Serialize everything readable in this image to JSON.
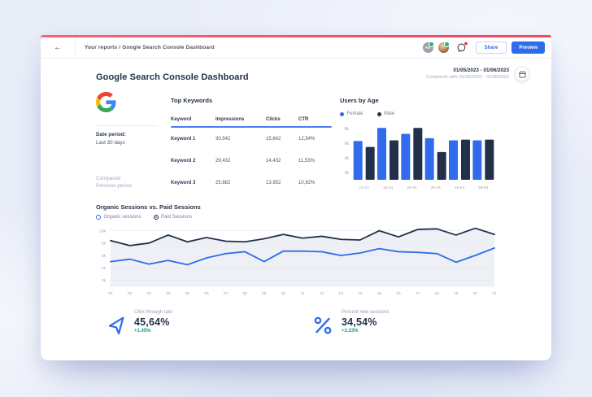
{
  "topbar": {
    "breadcrumb": "Your reports / Google Search Console Dashboard",
    "avatar_initials": "AK",
    "share_label": "Share",
    "preview_label": "Preview"
  },
  "header": {
    "title": "Google Search Console Dashboard",
    "date_range": "01/05/2023 - 01/06/2023",
    "compared_with": "Compared with: 01/05/2022 - 01/05/2022"
  },
  "side_panel": {
    "date_period_label": "Date period:",
    "date_period_value": "Last 30 days",
    "compared_label": "Compared:",
    "compared_value": "Previous period"
  },
  "keywords_table": {
    "title": "Top Keywords",
    "columns": [
      "Keyword",
      "Impressions",
      "Clicks",
      "CTR"
    ],
    "rows": [
      [
        "Keyword 1",
        "30,542",
        "15,642",
        "12,54%"
      ],
      [
        "Keyword 2",
        "29,432",
        "14,432",
        "11,53%"
      ],
      [
        "Keyword 3",
        "25,882",
        "13,952",
        "10,92%"
      ]
    ]
  },
  "chart_data": [
    {
      "id": "users_by_age",
      "type": "bar",
      "title": "Users by Age",
      "categories": [
        "13-17",
        "18-24",
        "25-34",
        "35-44",
        "45-54",
        "55-64"
      ],
      "series": [
        {
          "name": "Female",
          "color": "#2f6bea",
          "values": [
            6300,
            8100,
            7300,
            6700,
            6400,
            6400
          ]
        },
        {
          "name": "Male",
          "color": "#22304a",
          "values": [
            5500,
            6400,
            8100,
            4800,
            6500,
            6500
          ]
        }
      ],
      "ylim": [
        1000,
        8800
      ],
      "yticks": [
        2000,
        4000,
        6000,
        8000
      ],
      "ytick_labels": [
        "2k",
        "4k",
        "6k",
        "8k"
      ],
      "legend_position": "top",
      "grid": false
    },
    {
      "id": "sessions",
      "type": "line",
      "title": "Organic Sessions vs. Paid Sessions",
      "x": [
        "01",
        "02",
        "03",
        "04",
        "05",
        "06",
        "07",
        "08",
        "09",
        "10",
        "11",
        "12",
        "13",
        "14",
        "15",
        "16",
        "17",
        "18",
        "19",
        "20",
        "21"
      ],
      "series": [
        {
          "name": "Paid Sessions",
          "color": "#22304a",
          "fill": "#eef0f6",
          "values": [
            8400,
            7600,
            8000,
            9300,
            8200,
            8900,
            8300,
            8200,
            8700,
            9400,
            8800,
            9100,
            8600,
            8500,
            10000,
            9000,
            10200,
            10300,
            9300,
            10400,
            9400
          ]
        },
        {
          "name": "Organic sessions",
          "color": "#2f6bea",
          "values": [
            5000,
            5400,
            4600,
            5200,
            4500,
            5600,
            6300,
            6600,
            5000,
            6700,
            6700,
            6600,
            6000,
            6400,
            7100,
            6600,
            6500,
            6300,
            4900,
            6000,
            7200
          ]
        }
      ],
      "ylim": [
        1000,
        11000
      ],
      "yticks": [
        2000,
        4000,
        6000,
        8000,
        10000
      ],
      "ytick_labels": [
        "2k",
        "4k",
        "6k",
        "8k",
        "10k"
      ],
      "legend_position": "top",
      "grid": true
    }
  ],
  "kpis": [
    {
      "icon": "cursor-icon",
      "label": "Click through rate",
      "value": "45,64%",
      "delta": "+1.45%"
    },
    {
      "icon": "percent-icon",
      "label": "Percent new sessions",
      "value": "34,54%",
      "delta": "+3.23%"
    }
  ],
  "colors": {
    "accent_blue": "#2f6bea",
    "dark_navy": "#22304a",
    "top_line_red": "#f4435f",
    "positive_green": "#13a077",
    "table_divider_blue": "#4c7cf0",
    "page_background": "#e9edf8"
  }
}
